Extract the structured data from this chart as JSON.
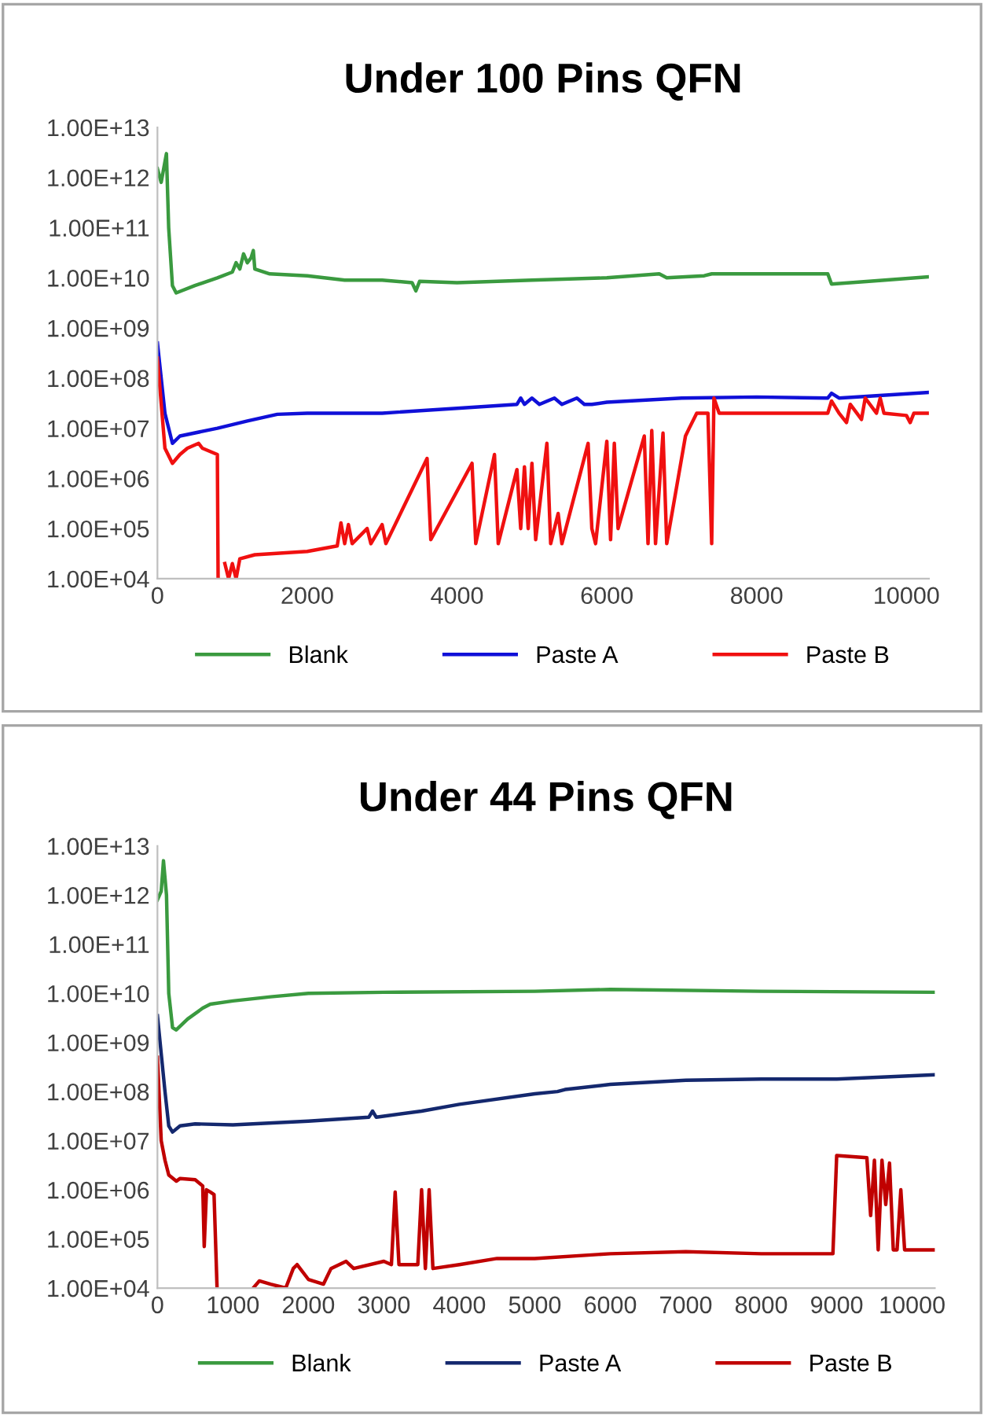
{
  "chart_data": [
    {
      "type": "line",
      "title": "Under 100 Pins QFN",
      "log": "y",
      "legend": "bottom",
      "grid": false,
      "marker": "none",
      "line_style": "solid",
      "xlim": [
        0,
        10300
      ],
      "xticks": [
        0,
        2000,
        4000,
        6000,
        8000,
        10000
      ],
      "ylim": [
        10000,
        10000000000000.0
      ],
      "yticks": [
        {
          "value": 10000.0,
          "label": "1.00E+04"
        },
        {
          "value": 100000.0,
          "label": "1.00E+05"
        },
        {
          "value": 1000000.0,
          "label": "1.00E+06"
        },
        {
          "value": 10000000.0,
          "label": "1.00E+07"
        },
        {
          "value": 100000000.0,
          "label": "1.00E+08"
        },
        {
          "value": 1000000000.0,
          "label": "1.00E+09"
        },
        {
          "value": 10000000000.0,
          "label": "1.00E+10"
        },
        {
          "value": 100000000000.0,
          "label": "1.00E+11"
        },
        {
          "value": 1000000000000.0,
          "label": "1.00E+12"
        },
        {
          "value": 10000000000000.0,
          "label": "1.00E+13"
        }
      ],
      "series": [
        {
          "name": "Blank",
          "color": "#3a9a3f",
          "x": [
            0,
            50,
            120,
            150,
            200,
            250,
            500,
            800,
            1000,
            1050,
            1100,
            1150,
            1200,
            1250,
            1280,
            1300,
            1500,
            2000,
            2500,
            3000,
            3400,
            3450,
            3500,
            4000,
            5000,
            6000,
            6700,
            6800,
            7300,
            7400,
            8950,
            9000,
            9500,
            10300
          ],
          "values": [
            1500000000000.0,
            800000000000.0,
            3000000000000.0,
            100000000000.0,
            7000000000.0,
            5000000000.0,
            7000000000.0,
            10000000000.0,
            13000000000.0,
            20000000000.0,
            15000000000.0,
            30000000000.0,
            20000000000.0,
            25000000000.0,
            35000000000.0,
            15000000000.0,
            12000000000.0,
            11000000000.0,
            9000000000.0,
            9000000000.0,
            8000000000.0,
            5500000000.0,
            8500000000.0,
            8000000000.0,
            9000000000.0,
            10000000000.0,
            12000000000.0,
            10000000000.0,
            11000000000.0,
            12000000000.0,
            12000000000.0,
            7500000000.0,
            8500000000.0,
            10500000000.0
          ]
        },
        {
          "name": "Paste A",
          "color": "#1010d8",
          "x": [
            0,
            100,
            200,
            300,
            800,
            1200,
            1600,
            2000,
            3000,
            4000,
            4800,
            4850,
            4900,
            5000,
            5100,
            5300,
            5400,
            5600,
            5700,
            5800,
            6000,
            7000,
            8000,
            8950,
            9000,
            9100,
            10300
          ],
          "values": [
            500000000.0,
            20000000.0,
            5000000.0,
            7000000.0,
            10000000.0,
            14000000.0,
            19000000.0,
            20000000.0,
            20000000.0,
            25000000.0,
            30000000.0,
            40000000.0,
            30000000.0,
            40000000.0,
            30000000.0,
            40000000.0,
            30000000.0,
            40000000.0,
            30000000.0,
            30000000.0,
            33000000.0,
            40000000.0,
            42000000.0,
            40000000.0,
            50000000.0,
            40000000.0,
            52000000.0
          ]
        },
        {
          "name": "Paste B",
          "color": "#f01010",
          "x": [
            0,
            100,
            200,
            300,
            400,
            550,
            600,
            800,
            810,
            860,
            900,
            950,
            1000,
            1050,
            1100,
            1300,
            2000,
            2400,
            2450,
            2500,
            2550,
            2600,
            2800,
            2850,
            3000,
            3050,
            3600,
            3650,
            4200,
            4250,
            4500,
            4550,
            4800,
            4850,
            4900,
            4950,
            5000,
            5050,
            5200,
            5250,
            5350,
            5400,
            5750,
            5800,
            5850,
            6000,
            6050,
            6100,
            6150,
            6500,
            6550,
            6600,
            6650,
            6750,
            6800,
            7050,
            7100,
            7200,
            7350,
            7400,
            7430,
            7500,
            8950,
            9000,
            9100,
            9200,
            9250,
            9400,
            9450,
            9600,
            9650,
            9700,
            10000,
            10050,
            10100,
            10300
          ],
          "values": [
            250000000.0,
            4000000.0,
            2000000.0,
            3000000.0,
            4000000.0,
            5000000.0,
            4000000.0,
            3000000.0,
            10000.0,
            null,
            20000.0,
            10000.0,
            20000.0,
            10000.0,
            25000.0,
            30000.0,
            35000.0,
            45000.0,
            130000.0,
            50000.0,
            120000.0,
            50000.0,
            100000.0,
            50000.0,
            120000.0,
            50000.0,
            2500000.0,
            60000.0,
            2000000.0,
            50000.0,
            3000000.0,
            50000.0,
            1500000.0,
            100000.0,
            1700000.0,
            100000.0,
            2000000.0,
            60000.0,
            5000000.0,
            50000.0,
            200000.0,
            50000.0,
            5000000.0,
            100000.0,
            50000.0,
            5500000.0,
            60000.0,
            5000000.0,
            100000.0,
            7000000.0,
            50000.0,
            9000000.0,
            50000.0,
            8000000.0,
            50000.0,
            7000000.0,
            10000000.0,
            20000000.0,
            20000000.0,
            50000.0,
            40000000.0,
            20000000.0,
            20000000.0,
            35000000.0,
            20000000.0,
            13000000.0,
            30000000.0,
            15000000.0,
            40000000.0,
            20000000.0,
            40000000.0,
            20000000.0,
            18000000.0,
            13000000.0,
            20000000.0,
            20000000.0
          ]
        }
      ]
    },
    {
      "type": "line",
      "title": "Under 44 Pins QFN",
      "log": "y",
      "legend": "bottom",
      "grid": false,
      "marker": "none",
      "line_style": "solid",
      "xlim": [
        0,
        10300
      ],
      "xticks": [
        0,
        1000,
        2000,
        3000,
        4000,
        5000,
        6000,
        7000,
        8000,
        9000,
        10000
      ],
      "ylim": [
        10000,
        10000000000000.0
      ],
      "yticks": [
        {
          "value": 10000.0,
          "label": "1.00E+04"
        },
        {
          "value": 100000.0,
          "label": "1.00E+05"
        },
        {
          "value": 1000000.0,
          "label": "1.00E+06"
        },
        {
          "value": 10000000.0,
          "label": "1.00E+07"
        },
        {
          "value": 100000000.0,
          "label": "1.00E+08"
        },
        {
          "value": 1000000000.0,
          "label": "1.00E+09"
        },
        {
          "value": 10000000000.0,
          "label": "1.00E+10"
        },
        {
          "value": 100000000000.0,
          "label": "1.00E+11"
        },
        {
          "value": 1000000000000.0,
          "label": "1.00E+12"
        },
        {
          "value": 10000000000000.0,
          "label": "1.00E+13"
        }
      ],
      "series": [
        {
          "name": "Blank",
          "color": "#3a9a3f",
          "x": [
            0,
            50,
            80,
            120,
            150,
            200,
            250,
            400,
            600,
            700,
            1000,
            1500,
            2000,
            3000,
            5000,
            6000,
            8000,
            10300
          ],
          "values": [
            800000000000.0,
            1200000000000.0,
            5000000000000.0,
            1000000000000.0,
            10000000000.0,
            2000000000.0,
            1800000000.0,
            3000000000.0,
            5000000000.0,
            6000000000.0,
            7000000000.0,
            8500000000.0,
            10000000000.0,
            10500000000.0,
            11000000000.0,
            12000000000.0,
            11000000000.0,
            10500000000.0
          ]
        },
        {
          "name": "Paste A",
          "color": "#14286e",
          "x": [
            0,
            100,
            150,
            200,
            300,
            500,
            1000,
            2000,
            2800,
            2850,
            2900,
            3500,
            4000,
            5000,
            5300,
            5400,
            6000,
            7000,
            8000,
            9000,
            10300
          ],
          "values": [
            3500000000.0,
            100000000.0,
            20000000.0,
            15000000.0,
            20000000.0,
            22000000.0,
            21000000.0,
            25000000.0,
            30000000.0,
            40000000.0,
            30000000.0,
            40000000.0,
            55000000.0,
            90000000.0,
            100000000.0,
            110000000.0,
            140000000.0,
            170000000.0,
            180000000.0,
            180000000.0,
            220000000.0
          ]
        },
        {
          "name": "Paste B",
          "color": "#c00000",
          "x": [
            0,
            50,
            100,
            150,
            250,
            300,
            500,
            600,
            620,
            650,
            700,
            750,
            790,
            1000,
            1270,
            1350,
            1500,
            1700,
            1800,
            1850,
            2000,
            2200,
            2300,
            2500,
            2600,
            3000,
            3100,
            3150,
            3200,
            3450,
            3500,
            3550,
            3600,
            3650,
            4000,
            4500,
            5000,
            6000,
            7000,
            8000,
            8950,
            9000,
            9400,
            9450,
            9500,
            9550,
            9600,
            9650,
            9700,
            9750,
            9800,
            9850,
            9900,
            10300
          ],
          "values": [
            500000000.0,
            10000000.0,
            4000000.0,
            2000000.0,
            1500000.0,
            1700000.0,
            1600000.0,
            1200000.0,
            70000.0,
            1000000.0,
            900000.0,
            800000.0,
            10000.0,
            null,
            10000.0,
            14000.0,
            12000.0,
            10000.0,
            25000.0,
            30000.0,
            15000.0,
            12000.0,
            25000.0,
            35000.0,
            25000.0,
            35000.0,
            30000.0,
            900000.0,
            30000.0,
            30000.0,
            1000000.0,
            25000.0,
            1000000.0,
            25000.0,
            30000.0,
            40000.0,
            40000.0,
            50000.0,
            55000.0,
            50000.0,
            50000.0,
            5000000.0,
            4500000.0,
            300000.0,
            4000000.0,
            60000.0,
            4000000.0,
            500000.0,
            3500000.0,
            60000.0,
            60000.0,
            1000000.0,
            60000.0,
            60000.0
          ]
        }
      ]
    }
  ]
}
